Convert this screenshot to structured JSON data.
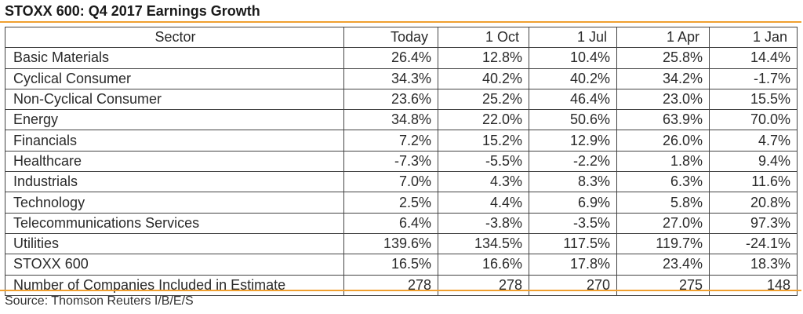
{
  "title": "STOXX 600: Q4 2017 Earnings Growth",
  "columns": [
    "Sector",
    "Today",
    "1 Oct",
    "1 Jul",
    "1 Apr",
    "1 Jan"
  ],
  "rows": [
    [
      "Basic Materials",
      "26.4%",
      "12.8%",
      "10.4%",
      "25.8%",
      "14.4%"
    ],
    [
      "Cyclical Consumer",
      "34.3%",
      "40.2%",
      "40.2%",
      "34.2%",
      "-1.7%"
    ],
    [
      "Non-Cyclical Consumer",
      "23.6%",
      "25.2%",
      "46.4%",
      "23.0%",
      "15.5%"
    ],
    [
      "Energy",
      "34.8%",
      "22.0%",
      "50.6%",
      "63.9%",
      "70.0%"
    ],
    [
      "Financials",
      "7.2%",
      "15.2%",
      "12.9%",
      "26.0%",
      "4.7%"
    ],
    [
      "Healthcare",
      "-7.3%",
      "-5.5%",
      "-2.2%",
      "1.8%",
      "9.4%"
    ],
    [
      "Industrials",
      "7.0%",
      "4.3%",
      "8.3%",
      "6.3%",
      "11.6%"
    ],
    [
      "Technology",
      "2.5%",
      "4.4%",
      "6.9%",
      "5.8%",
      "20.8%"
    ],
    [
      "Telecommunications Services",
      "6.4%",
      "-3.8%",
      "-3.5%",
      "27.0%",
      "97.3%"
    ],
    [
      "Utilities",
      "139.6%",
      "134.5%",
      "117.5%",
      "119.7%",
      "-24.1%"
    ],
    [
      "STOXX 600",
      "16.5%",
      "16.6%",
      "17.8%",
      "23.4%",
      "18.3%"
    ],
    [
      "Number of Companies Included in Estimate",
      "278",
      "278",
      "270",
      "275",
      "148"
    ]
  ],
  "source": "Source: Thomson Reuters I/B/E/S",
  "colors": {
    "accent_rule": "#f0a030",
    "border": "#444444"
  }
}
